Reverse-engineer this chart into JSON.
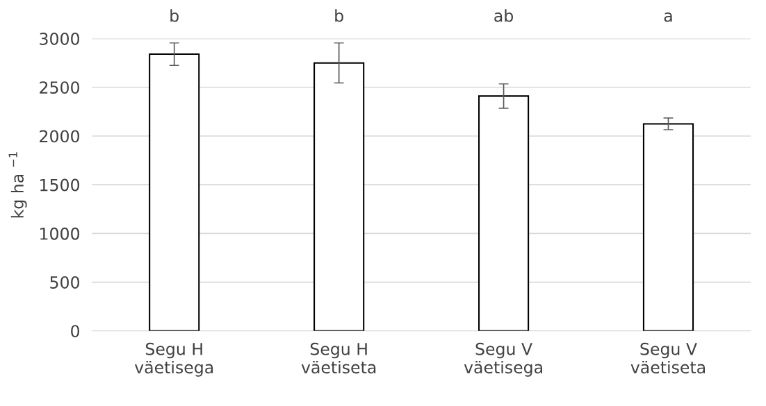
{
  "chart_data": {
    "type": "bar",
    "ylabel": "kg ha $^{−1}$",
    "categories": [
      "Segu H\nväetisega",
      "Segu H\nväetiseta",
      "Segu V\nväetisega",
      "Segu V\nväetiseta"
    ],
    "values": [
      2840,
      2750,
      2410,
      2125
    ],
    "errors": [
      115,
      205,
      125,
      60
    ],
    "color": "#ffffff",
    "ylim": [
      0,
      3000
    ],
    "yticks": [
      0,
      500,
      1000,
      1500,
      2000,
      2500,
      3000
    ],
    "grid": "y",
    "annotations": [
      "b",
      "b",
      "ab",
      "a"
    ]
  }
}
